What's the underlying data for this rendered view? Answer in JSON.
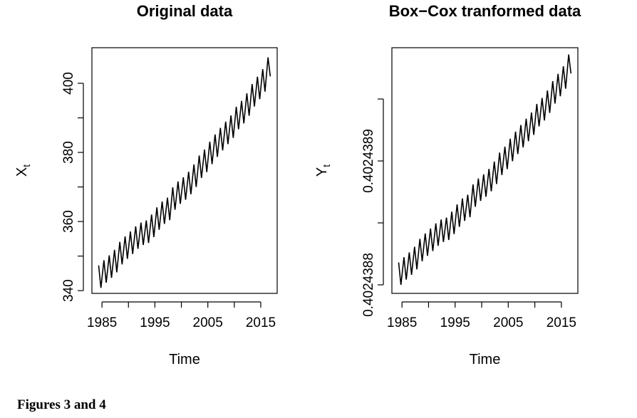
{
  "chart_data": [
    {
      "type": "line",
      "title": "Original data",
      "xlabel": "Time",
      "ylabel": "X",
      "ylabel_subscript": "t",
      "color": "#000000",
      "x": [
        1984.37,
        1984.8,
        1985.37,
        1985.8,
        1986.37,
        1986.8,
        1987.37,
        1987.8,
        1988.37,
        1988.8,
        1989.37,
        1989.8,
        1990.37,
        1990.8,
        1991.37,
        1991.8,
        1992.37,
        1992.8,
        1993.37,
        1993.8,
        1994.37,
        1994.8,
        1995.37,
        1995.8,
        1996.37,
        1996.8,
        1997.37,
        1997.8,
        1998.37,
        1998.8,
        1999.37,
        1999.8,
        2000.37,
        2000.8,
        2001.37,
        2001.8,
        2002.37,
        2002.8,
        2003.37,
        2003.8,
        2004.37,
        2004.8,
        2005.37,
        2005.8,
        2006.37,
        2006.8,
        2007.37,
        2007.8,
        2008.37,
        2008.8,
        2009.37,
        2009.8,
        2010.37,
        2010.8,
        2011.37,
        2011.8,
        2012.37,
        2012.8,
        2013.37,
        2013.8,
        2014.37,
        2014.8,
        2015.37,
        2015.8,
        2016.37,
        2016.8
      ],
      "values": [
        347.3,
        340.8,
        348.8,
        342.3,
        350.2,
        343.7,
        351.8,
        345.3,
        354.1,
        347.6,
        355.7,
        349.2,
        357.1,
        350.6,
        358.6,
        352.1,
        359.7,
        353.2,
        360.3,
        353.8,
        362.0,
        355.5,
        364.1,
        357.6,
        365.8,
        359.3,
        366.9,
        360.4,
        369.9,
        363.4,
        371.6,
        365.1,
        372.8,
        366.3,
        374.4,
        367.9,
        376.5,
        370.0,
        379.1,
        372.6,
        380.8,
        374.3,
        383.1,
        376.6,
        385.2,
        378.7,
        387.1,
        380.6,
        388.9,
        382.4,
        390.7,
        384.2,
        393.2,
        386.7,
        394.9,
        388.4,
        397.1,
        390.6,
        399.8,
        393.3,
        401.9,
        395.4,
        404.1,
        397.6,
        407.5,
        402.0
      ],
      "xlim": [
        1983.1,
        2018.1
      ],
      "xticks": [
        1985,
        1995,
        2005,
        2015
      ],
      "xticks_minor": [
        1990,
        2000,
        2010
      ],
      "ylim": [
        339.2,
        410.3
      ],
      "yticks": [
        340,
        360,
        380,
        400
      ],
      "yticks_minor": [
        350,
        370,
        390
      ]
    },
    {
      "type": "line",
      "title": "Box−Cox tranformed data",
      "xlabel": "Time",
      "ylabel": "Y",
      "ylabel_subscript": "t",
      "color": "#000000",
      "x": [
        1984.37,
        1984.8,
        1985.37,
        1985.8,
        1986.37,
        1986.8,
        1987.37,
        1987.8,
        1988.37,
        1988.8,
        1989.37,
        1989.8,
        1990.37,
        1990.8,
        1991.37,
        1991.8,
        1992.37,
        1992.8,
        1993.37,
        1993.8,
        1994.37,
        1994.8,
        1995.37,
        1995.8,
        1996.37,
        1996.8,
        1997.37,
        1997.8,
        1998.37,
        1998.8,
        1999.37,
        1999.8,
        2000.37,
        2000.8,
        2001.37,
        2001.8,
        2002.37,
        2002.8,
        2003.37,
        2003.8,
        2004.37,
        2004.8,
        2005.37,
        2005.8,
        2006.37,
        2006.8,
        2007.37,
        2007.8,
        2008.37,
        2008.8,
        2009.37,
        2009.8,
        2010.37,
        2010.8,
        2011.37,
        2011.8,
        2012.37,
        2012.8,
        2013.37,
        2013.8,
        2014.37,
        2014.8,
        2015.37,
        2015.8,
        2016.37,
        2016.8
      ],
      "values": [
        0.4024388181,
        0.4024388,
        0.4024388223,
        0.4024388042,
        0.4024388262,
        0.4024388081,
        0.4024388307,
        0.4024388125,
        0.4024388371,
        0.402438819,
        0.4024388415,
        0.4024388234,
        0.4024388454,
        0.4024388273,
        0.4024388496,
        0.4024388315,
        0.4024388527,
        0.4024388346,
        0.4024388543,
        0.4024388362,
        0.4024388591,
        0.402438841,
        0.4024388649,
        0.4024388468,
        0.4024388697,
        0.4024388516,
        0.4024388727,
        0.4024388546,
        0.4024388811,
        0.402438863,
        0.4024388858,
        0.4024388677,
        0.4024388892,
        0.4024388711,
        0.4024388936,
        0.4024388755,
        0.4024388995,
        0.4024388814,
        0.4024389067,
        0.4024388886,
        0.4024389115,
        0.4024388934,
        0.4024389179,
        0.4024388998,
        0.4024389237,
        0.4024389056,
        0.402438929,
        0.4024389109,
        0.4024389341,
        0.4024389159,
        0.4024389391,
        0.402438921,
        0.402438946,
        0.4024389279,
        0.4024389508,
        0.4024389327,
        0.4024389569,
        0.4024389388,
        0.4024389644,
        0.4024389463,
        0.4024389703,
        0.4024389522,
        0.4024389764,
        0.4024389583,
        0.4024389859,
        0.4024389706
      ],
      "xlim": [
        1983.1,
        2018.1
      ],
      "xticks": [
        1985,
        1995,
        2005,
        2015
      ],
      "xticks_minor": [
        1990,
        2000,
        2010
      ],
      "ylim": [
        0.4024387931,
        0.4024389914
      ],
      "yticks": [
        0.4024388,
        0.4024389
      ],
      "yticks_minor": [
        0.40243885,
        0.40243895
      ]
    }
  ],
  "caption": "Figures 3 and 4"
}
